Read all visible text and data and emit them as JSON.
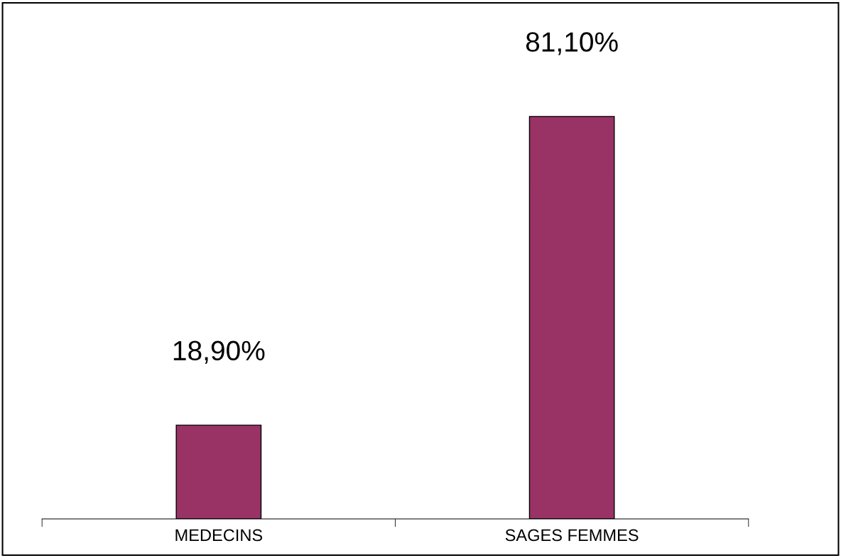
{
  "chart_data": {
    "type": "bar",
    "categories": [
      "MEDECINS",
      "SAGES FEMMES"
    ],
    "values": [
      18.9,
      81.1
    ],
    "value_labels": [
      "18,90%",
      "81,10%"
    ],
    "color": "#993366",
    "grid": false,
    "legend": false
  }
}
